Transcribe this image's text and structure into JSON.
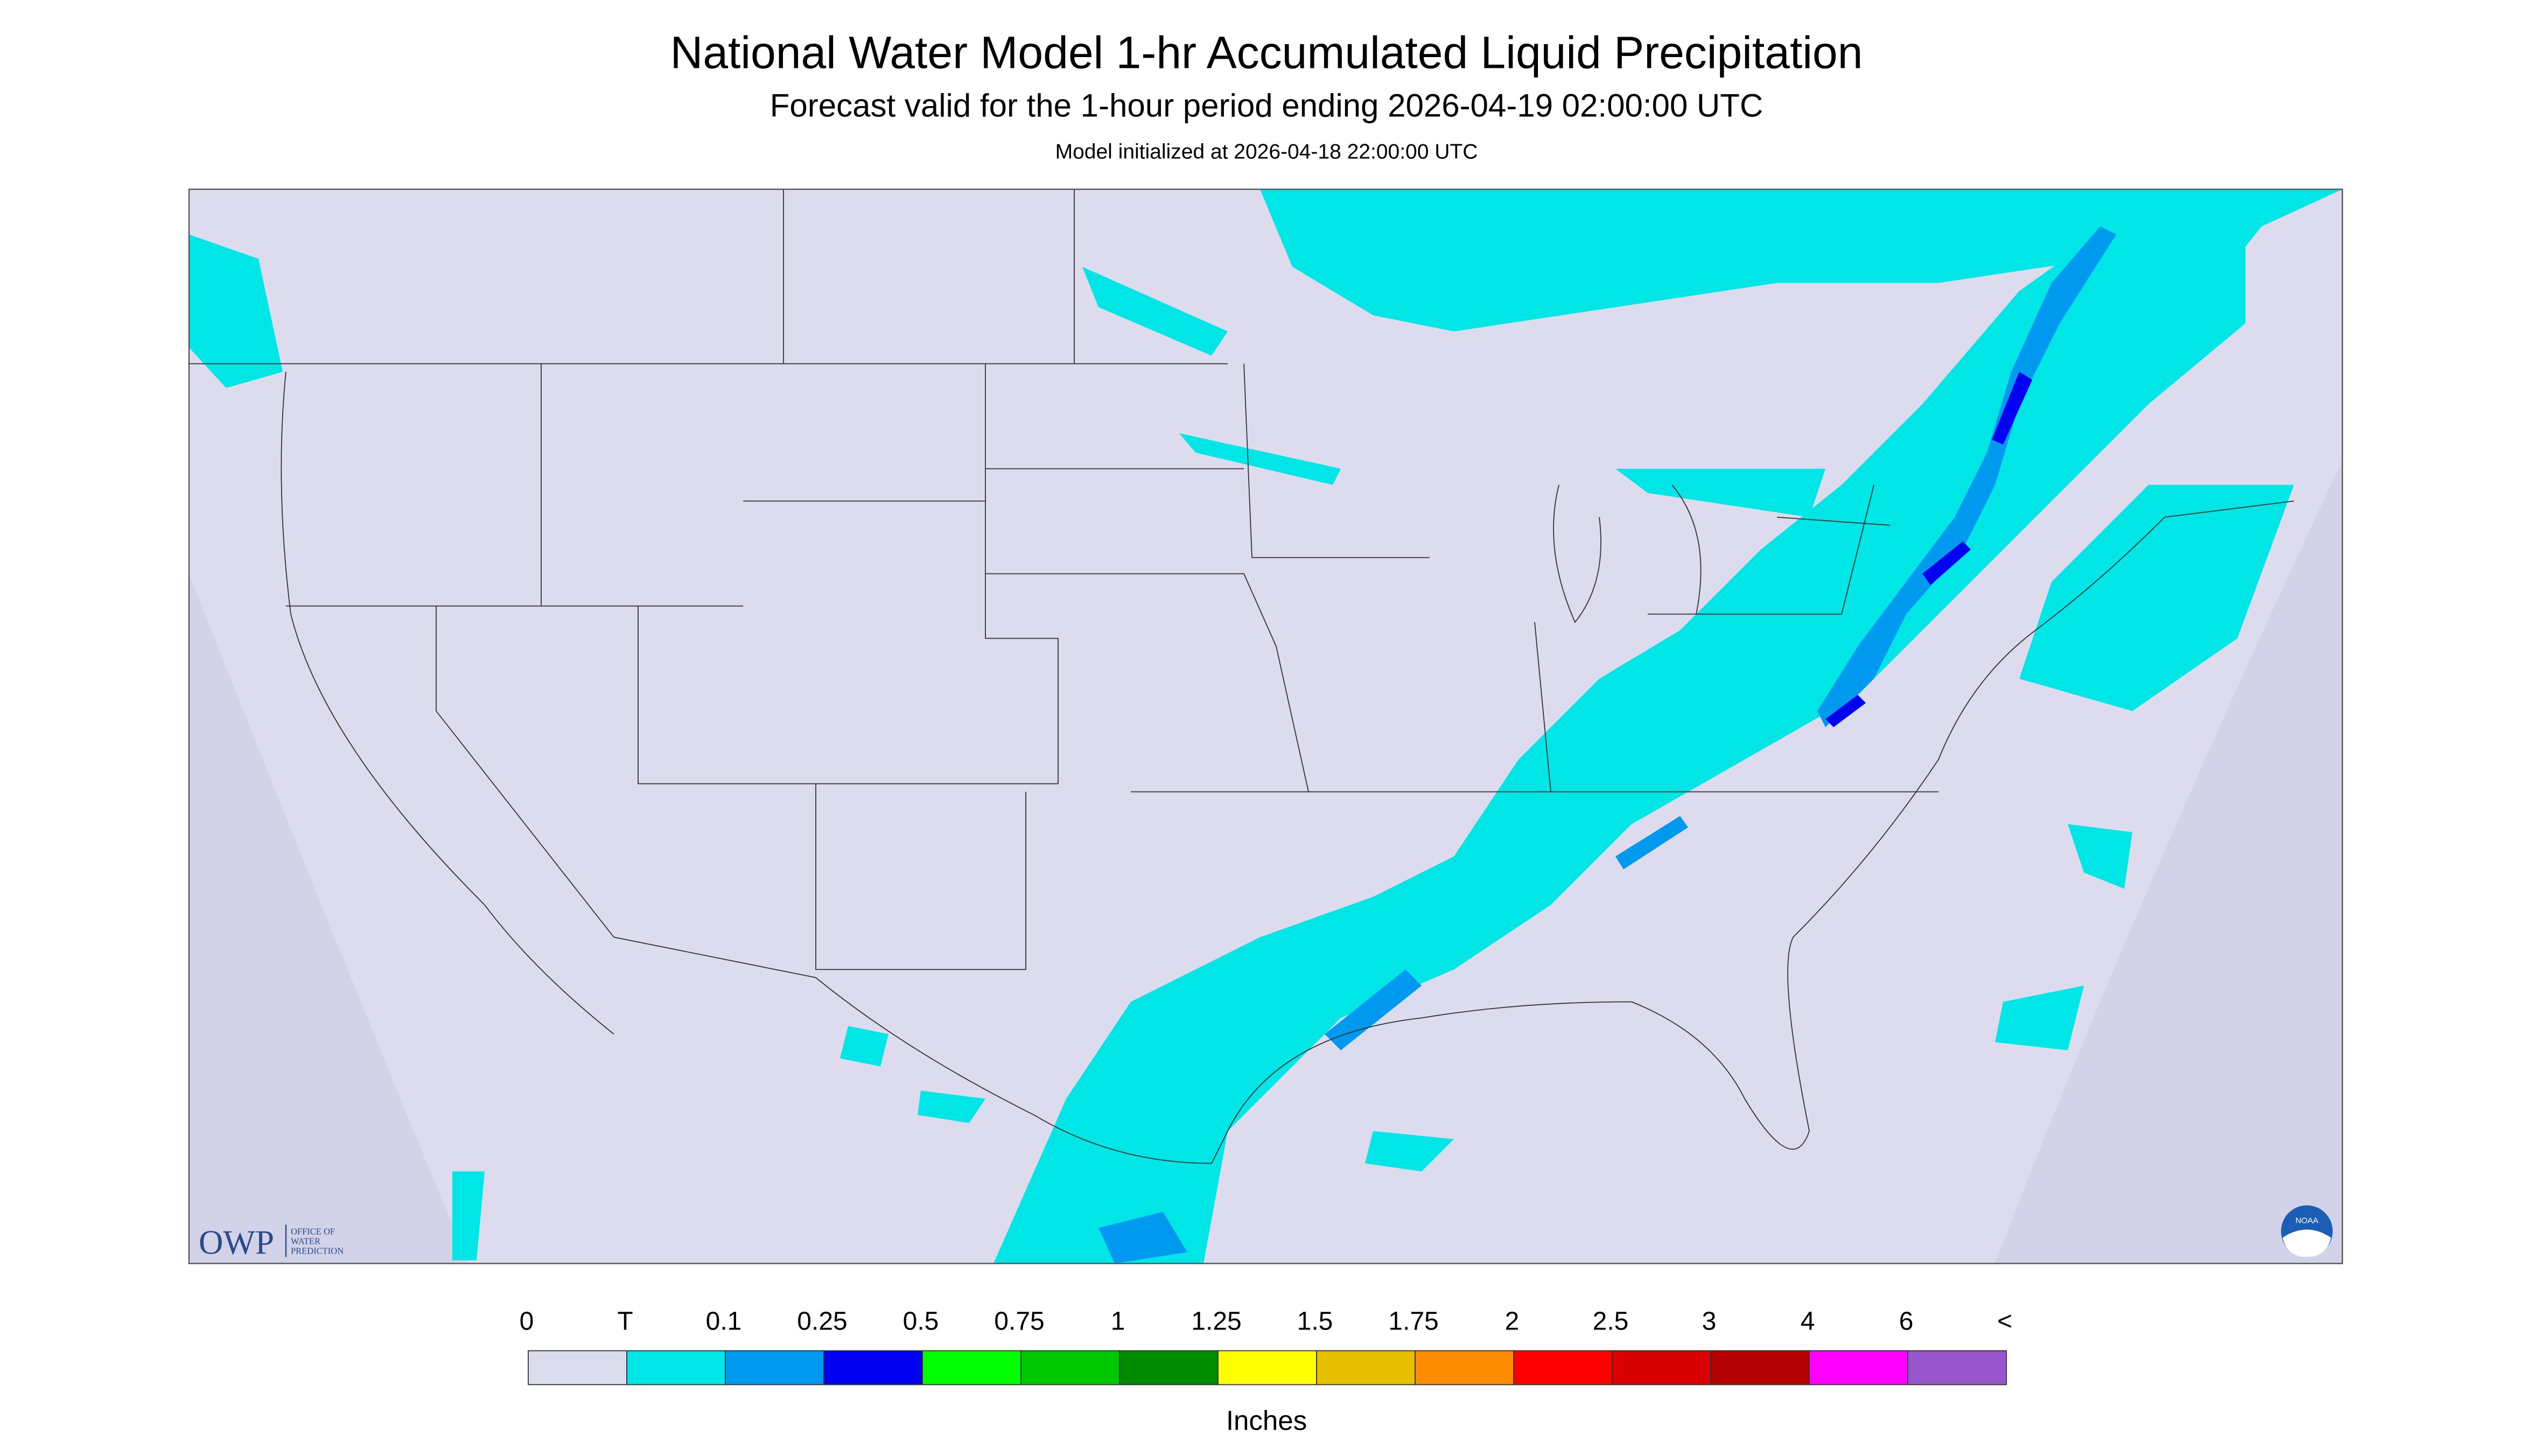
{
  "header": {
    "title": "National Water Model 1-hr Accumulated Liquid Precipitation",
    "subtitle": "Forecast valid for the 1-hour period ending 2026-04-19 02:00:00 UTC",
    "initialized": "Model initialized at 2026-04-18 22:00:00 UTC"
  },
  "legend": {
    "labels": [
      "0",
      "T",
      "0.1",
      "0.25",
      "0.5",
      "0.75",
      "1",
      "1.25",
      "1.5",
      "1.75",
      "2",
      "2.5",
      "3",
      "4",
      "6",
      "<"
    ],
    "colors": [
      "#dcdcee",
      "#00e6e6",
      "#0099f0",
      "#0000f0",
      "#00ff00",
      "#00c800",
      "#008c00",
      "#ffff00",
      "#e6c000",
      "#ff8c00",
      "#ff0000",
      "#d80000",
      "#b40000",
      "#ff00ff",
      "#9955cc"
    ],
    "unit": "Inches"
  },
  "logos": {
    "owp": "OWP",
    "owp_lines": [
      "OFFICE OF",
      "WATER",
      "PREDICTION"
    ],
    "noaa": "NOAA"
  }
}
